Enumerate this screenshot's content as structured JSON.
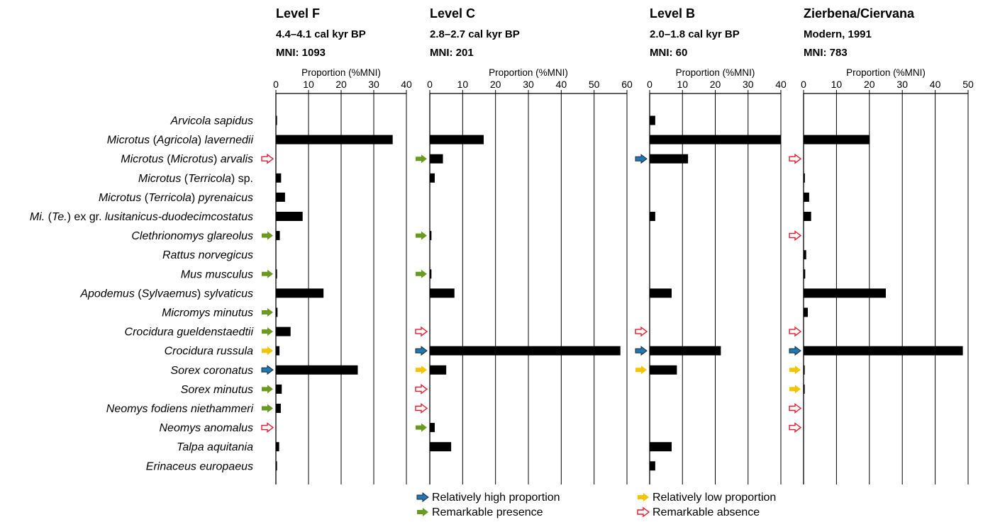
{
  "colors": {
    "high": "#1f77b4",
    "presence": "#6a9a1f",
    "low": "#f5c400",
    "absence": "#e8192c",
    "bar": "#000000"
  },
  "legend": {
    "high": "Relatively high proportion",
    "presence": "Remarkable presence",
    "low": "Relatively low proportion",
    "absence": "Remarkable absence"
  },
  "species": [
    {
      "pre": "",
      "it": "Arvicola sapidus",
      "post": "",
      "it2": ""
    },
    {
      "pre": "",
      "it": "Microtus",
      "post": " (",
      "it2": "Agricola",
      "post2": ") ",
      "it3": "lavernedii"
    },
    {
      "pre": "",
      "it": "Microtus",
      "post": " (",
      "it2": "Microtus",
      "post2": ") ",
      "it3": "arvalis"
    },
    {
      "pre": "",
      "it": "Microtus",
      "post": " (",
      "it2": "Terricola",
      "post2": ") sp.",
      "it3": ""
    },
    {
      "pre": "",
      "it": "Microtus",
      "post": " (",
      "it2": "Terricola",
      "post2": ") ",
      "it3": "pyrenaicus"
    },
    {
      "pre": "",
      "it": "Mi.",
      "post": " (",
      "it2": "Te.",
      "post2": ") ex gr. ",
      "it3": "lusitanicus-duodecimcostatus"
    },
    {
      "pre": "",
      "it": "Clethrionomys glareolus",
      "post": "",
      "it2": ""
    },
    {
      "pre": "",
      "it": "Rattus norvegicus",
      "post": "",
      "it2": ""
    },
    {
      "pre": "",
      "it": "Mus musculus",
      "post": "",
      "it2": ""
    },
    {
      "pre": "",
      "it": "Apodemus",
      "post": " (",
      "it2": "Sylvaemus",
      "post2": ") ",
      "it3": "sylvaticus"
    },
    {
      "pre": "",
      "it": "Micromys minutus",
      "post": "",
      "it2": ""
    },
    {
      "pre": "",
      "it": "Crocidura gueldenstaedtii",
      "post": "",
      "it2": ""
    },
    {
      "pre": "",
      "it": "Crocidura russula",
      "post": "",
      "it2": ""
    },
    {
      "pre": "",
      "it": "Sorex coronatus",
      "post": "",
      "it2": ""
    },
    {
      "pre": "",
      "it": "Sorex minutus",
      "post": "",
      "it2": ""
    },
    {
      "pre": "",
      "it": "Neomys fodiens niethammeri",
      "post": "",
      "it2": ""
    },
    {
      "pre": "",
      "it": "Neomys anomalus",
      "post": "",
      "it2": ""
    },
    {
      "pre": "",
      "it": "Talpa aquitania",
      "post": "",
      "it2": ""
    },
    {
      "pre": "",
      "it": "Erinaceus europaeus",
      "post": "",
      "it2": ""
    }
  ],
  "chart_data": [
    {
      "type": "bar",
      "title": "Level F",
      "subtitle": "4.4–4.1 cal kyr BP",
      "mni": "MNI: 1093",
      "xlabel": "Proportion (%MNI)",
      "xlim": [
        0,
        40
      ],
      "ticks": [
        0,
        10,
        20,
        30,
        40
      ],
      "values": [
        0.3,
        35.8,
        0,
        1.6,
        2.8,
        8.2,
        1.2,
        0,
        0.1,
        14.6,
        0.5,
        4.5,
        1.1,
        25.1,
        1.8,
        1.5,
        0,
        1.0,
        0.1
      ],
      "markers": [
        "",
        "",
        "absence",
        "",
        "",
        "",
        "presence",
        "",
        "presence",
        "",
        "presence",
        "presence",
        "low",
        "high",
        "presence",
        "presence",
        "absence",
        "",
        ""
      ]
    },
    {
      "type": "bar",
      "title": "Level C",
      "subtitle": "2.8–2.7 cal kyr BP",
      "mni": "MNI: 201",
      "xlabel": "Proportion (%MNI)",
      "xlim": [
        0,
        60
      ],
      "ticks": [
        0,
        10,
        20,
        30,
        40,
        50,
        60
      ],
      "values": [
        0,
        16.4,
        4.0,
        1.5,
        0,
        0,
        0.5,
        0,
        0.5,
        7.5,
        0,
        0,
        58.0,
        5.0,
        0,
        0,
        1.5,
        6.5,
        0
      ],
      "markers": [
        "",
        "",
        "presence",
        "",
        "",
        "",
        "presence",
        "",
        "presence",
        "",
        "",
        "absence",
        "high",
        "low",
        "absence",
        "absence",
        "presence",
        "",
        ""
      ]
    },
    {
      "type": "bar",
      "title": "Level B",
      "subtitle": "2.0–1.8 cal kyr BP",
      "mni": "MNI: 60",
      "xlabel": "Proportion (%MNI)",
      "xlim": [
        0,
        40
      ],
      "ticks": [
        0,
        10,
        20,
        30,
        40
      ],
      "values": [
        1.7,
        40.0,
        11.7,
        0,
        0,
        1.7,
        0,
        0,
        0,
        6.7,
        0,
        0,
        21.7,
        8.3,
        0,
        0,
        0,
        6.7,
        1.7
      ],
      "markers": [
        "",
        "",
        "high",
        "",
        "",
        "",
        "",
        "",
        "",
        "",
        "",
        "absence",
        "high",
        "low",
        "",
        "",
        "",
        "",
        ""
      ]
    },
    {
      "type": "bar",
      "title": "Zierbena/Ciervana",
      "subtitle": "Modern, 1991",
      "mni": "MNI: 783",
      "xlabel": "Proportion (%MNI)",
      "xlim": [
        0,
        50
      ],
      "ticks": [
        0,
        10,
        20,
        30,
        40,
        50
      ],
      "values": [
        0,
        20.1,
        0,
        0.4,
        1.7,
        2.3,
        0,
        0.8,
        0.5,
        25.0,
        1.3,
        0,
        48.4,
        0.1,
        0.1,
        0,
        0,
        0,
        0
      ],
      "markers": [
        "",
        "",
        "absence",
        "",
        "",
        "",
        "absence",
        "",
        "",
        "",
        "",
        "absence",
        "high",
        "low",
        "low",
        "absence",
        "absence",
        "",
        ""
      ]
    }
  ]
}
